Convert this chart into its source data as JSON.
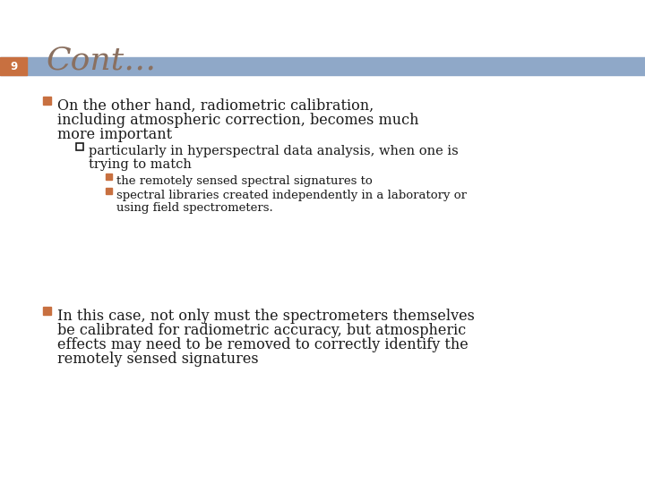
{
  "title": "Cont…",
  "title_color": "#8a7060",
  "title_fontsize": 26,
  "slide_number": "9",
  "slide_number_color": "#ffffff",
  "header_bar_color": "#8fa8c8",
  "left_bar_color": "#c87040",
  "background_color": "#ffffff",
  "text_color": "#1a1a1a",
  "bullet1_marker_color": "#c87040",
  "bullet2_marker_color": "#1a1a1a",
  "bullet3_marker_color": "#c87040",
  "b1_line1": "On the other hand, radiometric calibration,",
  "b1_line2": "including atmospheric correction, becomes much",
  "b1_line3": "more important",
  "b2_line1": "particularly in hyperspectral data analysis, when one is",
  "b2_line2": "trying to match",
  "b3a_line1": "the remotely sensed spectral signatures to",
  "b3b_line1": "spectral libraries created independently in a laboratory or",
  "b3b_line2": "using field spectrometers.",
  "b4_line1": "In this case, not only must the spectrometers themselves",
  "b4_line2": "be calibrated for radiometric accuracy, but atmospheric",
  "b4_line3": "effects may need to be removed to correctly identify the",
  "b4_line4": "remotely sensed signatures"
}
